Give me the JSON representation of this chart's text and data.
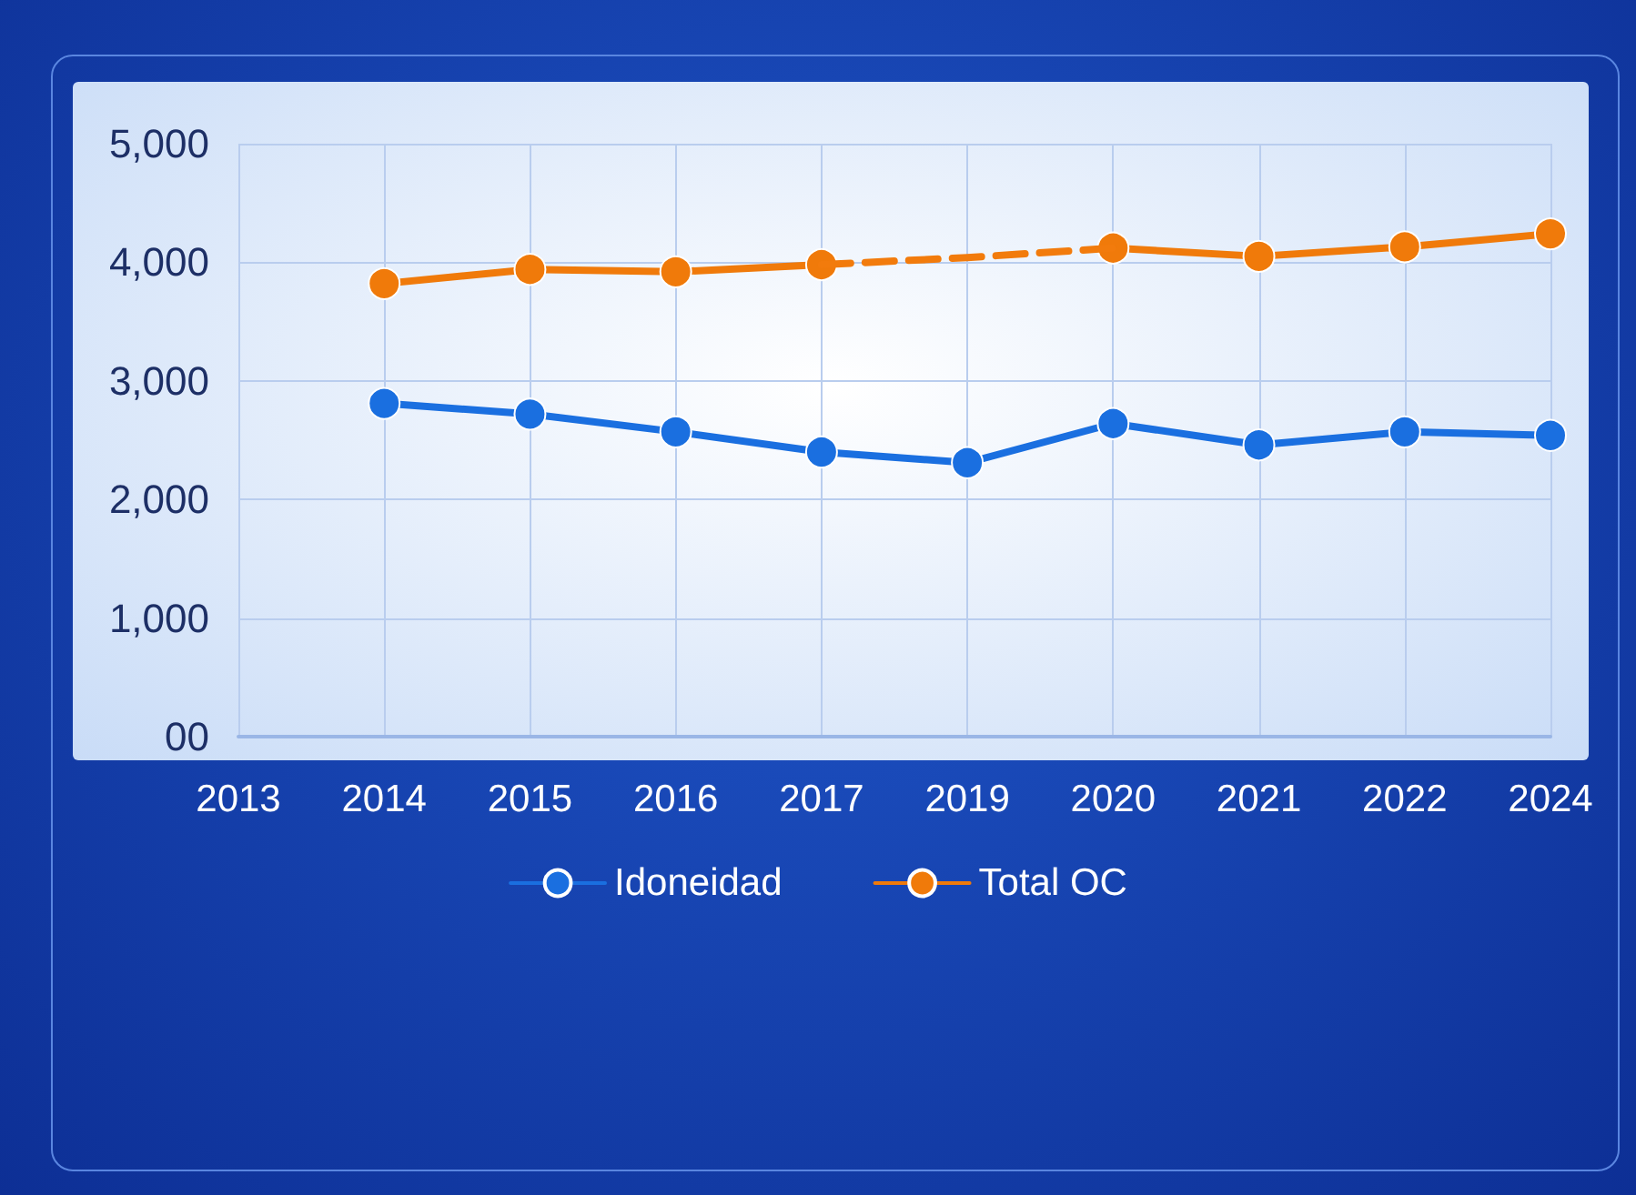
{
  "chart_data": {
    "type": "line",
    "categories": [
      "2013",
      "2014",
      "2015",
      "2016",
      "2017",
      "2019",
      "2020",
      "2021",
      "2022",
      "2024"
    ],
    "series": [
      {
        "name": "Idoneidad",
        "color": "#1a6fe0",
        "values": [
          null,
          2810,
          2720,
          2570,
          2400,
          2310,
          2640,
          2460,
          2570,
          2540
        ]
      },
      {
        "name": "Total OC",
        "color": "#f07a0a",
        "values": [
          null,
          3820,
          3940,
          3920,
          3980,
          null,
          4120,
          4050,
          4130,
          4240
        ]
      },
      {
        "color": "#f27b0c",
        "values": [
          null,
          null,
          null,
          null,
          3980,
          4040,
          4120,
          null,
          null,
          null
        ],
        "line_style": "dashed",
        "marker": "none"
      }
    ],
    "ylim": [
      0,
      5000
    ],
    "yticks": [
      {
        "value": 0,
        "label": "00"
      },
      {
        "value": 1000,
        "label": "1,000"
      },
      {
        "value": 2000,
        "label": "2,000"
      },
      {
        "value": 3000,
        "label": "3,000"
      },
      {
        "value": 4000,
        "label": "4,000"
      },
      {
        "value": 5000,
        "label": "5,000"
      }
    ],
    "grid": true,
    "legend": "bottom",
    "marker": "circle",
    "line_style": "solid"
  }
}
